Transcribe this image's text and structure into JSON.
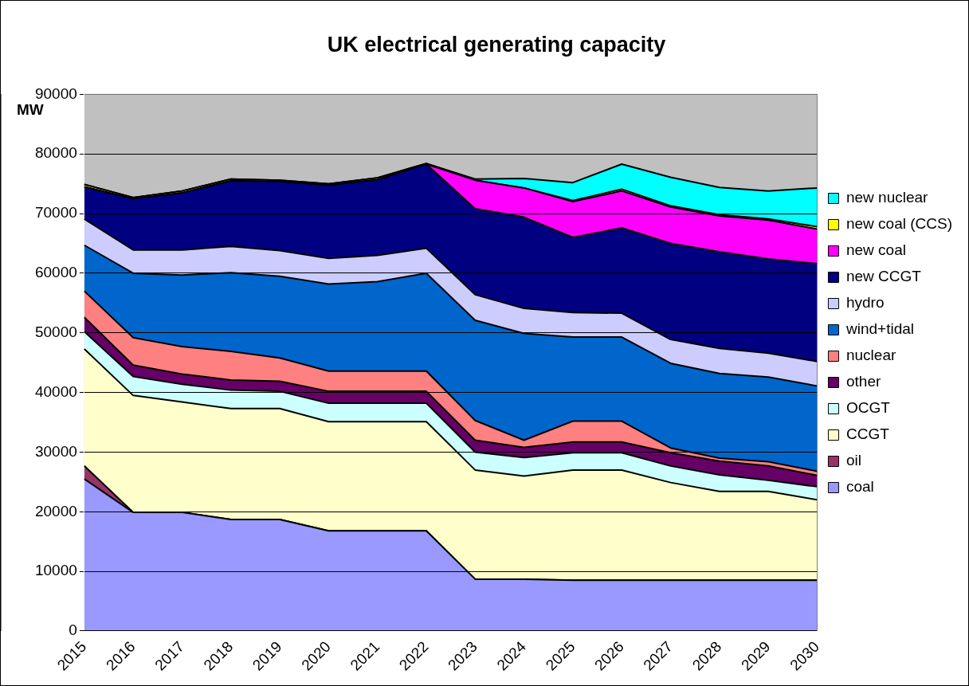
{
  "chart_data": {
    "type": "area",
    "title": "UK electrical generating capacity",
    "ylabel": "MW",
    "stacked": true,
    "grid": "y",
    "legend": "right",
    "marker": "none",
    "categories": [
      "2015",
      "2016",
      "2017",
      "2018",
      "2019",
      "2020",
      "2021",
      "2022",
      "2023",
      "2024",
      "2025",
      "2026",
      "2027",
      "2028",
      "2029",
      "2030"
    ],
    "ylim": [
      0,
      90000
    ],
    "yticks": [
      0,
      10000,
      20000,
      30000,
      40000,
      50000,
      60000,
      70000,
      80000,
      90000
    ],
    "series": [
      {
        "name": "coal",
        "color": "#9999ff",
        "values": [
          25500,
          19900,
          19900,
          18700,
          18700,
          16800,
          16800,
          16800,
          8700,
          8700,
          8500,
          8500,
          8500,
          8500,
          8500,
          8500
        ]
      },
      {
        "name": "oil",
        "color": "#993366",
        "values": [
          2200,
          0,
          0,
          0,
          0,
          0,
          0,
          0,
          0,
          0,
          0,
          0,
          0,
          0,
          0,
          0
        ]
      },
      {
        "name": "CCGT",
        "color": "#ffffcc",
        "values": [
          19600,
          19600,
          18500,
          18600,
          18600,
          18300,
          18300,
          18300,
          18300,
          17300,
          18500,
          18500,
          16400,
          14900,
          14900,
          13500
        ]
      },
      {
        "name": "OCGT",
        "color": "#ccffff",
        "values": [
          2900,
          3200,
          3000,
          3100,
          2900,
          3100,
          3100,
          3100,
          3000,
          3100,
          2900,
          2900,
          2800,
          2800,
          1900,
          2200
        ]
      },
      {
        "name": "other",
        "color": "#660066",
        "values": [
          2400,
          1900,
          1700,
          1700,
          1700,
          2000,
          2000,
          2000,
          2000,
          1700,
          1800,
          1800,
          2200,
          2300,
          2400,
          1900
        ]
      },
      {
        "name": "nuclear",
        "color": "#ff8080",
        "values": [
          4400,
          4600,
          4600,
          4800,
          3900,
          3400,
          3400,
          3400,
          3300,
          1200,
          3500,
          3500,
          800,
          500,
          700,
          700
        ]
      },
      {
        "name": "wind+tidal",
        "color": "#0066cc",
        "values": [
          7700,
          10800,
          12000,
          13200,
          13700,
          14600,
          15000,
          16400,
          16800,
          17900,
          14100,
          14100,
          14200,
          14200,
          14200,
          14300
        ]
      },
      {
        "name": "hydro",
        "color": "#ccccff",
        "values": [
          4400,
          3900,
          4200,
          4400,
          4300,
          4300,
          4400,
          4200,
          4300,
          4200,
          4100,
          4000,
          4000,
          4200,
          4000,
          4100
        ]
      },
      {
        "name": "new CCGT",
        "color": "#000080",
        "values": [
          5400,
          8600,
          9600,
          11000,
          11600,
          12300,
          12700,
          14100,
          14400,
          15300,
          12600,
          14300,
          16100,
          16200,
          15800,
          16400
        ]
      },
      {
        "name": "new coal",
        "color": "#ff00ff",
        "values": [
          0,
          0,
          0,
          0,
          0,
          0,
          0,
          0,
          4800,
          4900,
          6000,
          6200,
          6100,
          6000,
          6500,
          5800
        ]
      },
      {
        "name": "new coal (CCS)",
        "color": "#ffff00",
        "values": [
          400,
          200,
          300,
          300,
          200,
          200,
          300,
          100,
          0,
          0,
          200,
          300,
          200,
          200,
          200,
          400
        ]
      },
      {
        "name": "new nuclear",
        "color": "#00ffff",
        "values": [
          0,
          0,
          0,
          0,
          0,
          0,
          0,
          0,
          200,
          1600,
          3000,
          4200,
          4800,
          4600,
          4700,
          6500
        ]
      }
    ]
  }
}
